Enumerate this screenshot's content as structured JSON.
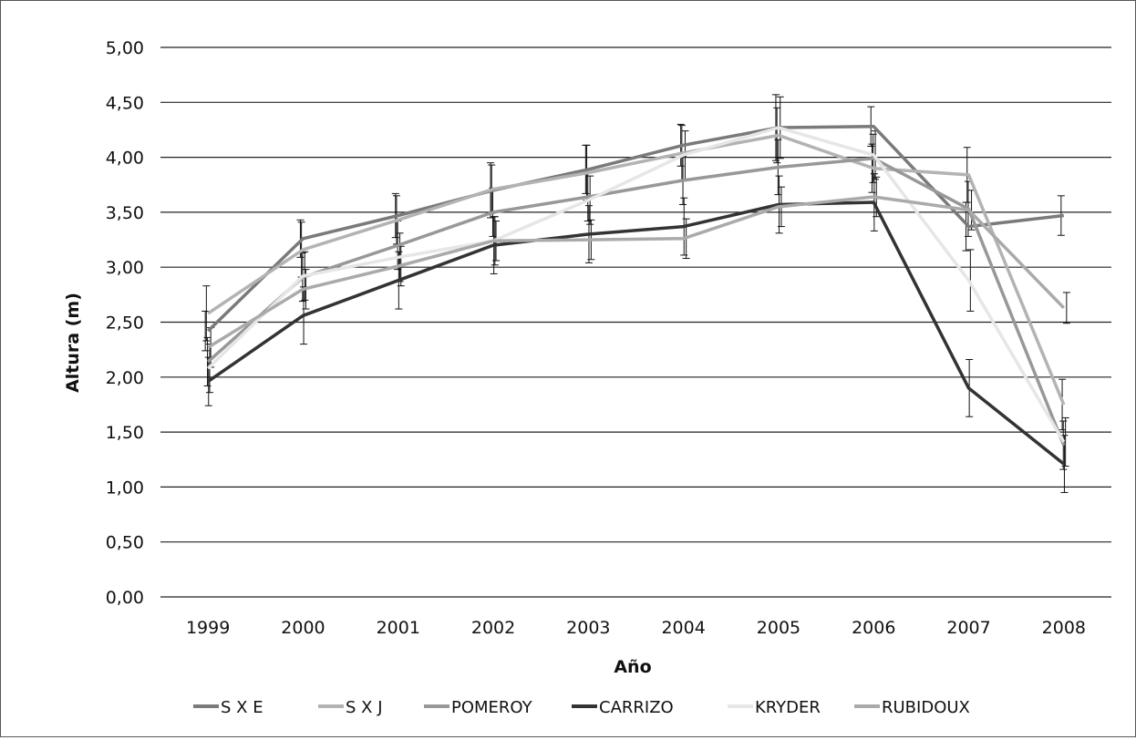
{
  "chart_data": {
    "type": "line",
    "title": "",
    "xlabel": "Año",
    "ylabel": "Altura (m)",
    "ylim": [
      0,
      5
    ],
    "y_ticks": [
      "0,00",
      "0,50",
      "1,00",
      "1,50",
      "2,00",
      "2,50",
      "3,00",
      "3,50",
      "4,00",
      "4,50",
      "5,00"
    ],
    "categories": [
      "1999",
      "2000",
      "2001",
      "2002",
      "2003",
      "2004",
      "2005",
      "2006",
      "2007",
      "2008"
    ],
    "grid": "horizontal",
    "legend_position": "bottom",
    "error_bars": true,
    "series": [
      {
        "name": "S X E",
        "color": "#7a7a7a",
        "values": [
          2.42,
          3.26,
          3.47,
          3.7,
          3.89,
          4.11,
          4.27,
          4.28,
          3.37,
          3.47
        ],
        "errors": [
          0.18,
          0.17,
          0.2,
          0.25,
          0.22,
          0.19,
          0.3,
          0.18,
          0.22,
          0.18
        ]
      },
      {
        "name": "S X J",
        "color": "#b3b3b3",
        "values": [
          2.58,
          3.16,
          3.43,
          3.71,
          3.86,
          4.04,
          4.2,
          3.9,
          3.84,
          1.75
        ],
        "errors": [
          0.25,
          0.25,
          0.22,
          0.22,
          0.25,
          0.25,
          0.25,
          0.22,
          0.25,
          0.23
        ]
      },
      {
        "name": "POMEROY",
        "color": "#989898",
        "values": [
          2.14,
          2.91,
          3.2,
          3.5,
          3.64,
          3.79,
          3.91,
          3.99,
          3.53,
          1.38
        ],
        "errors": [
          0.22,
          0.22,
          0.22,
          0.22,
          0.22,
          0.22,
          0.25,
          0.22,
          0.25,
          0.22
        ]
      },
      {
        "name": "CARRIZO",
        "color": "#333333",
        "values": [
          1.96,
          2.56,
          2.88,
          3.2,
          3.3,
          3.37,
          3.57,
          3.59,
          1.9,
          1.21
        ],
        "errors": [
          0.22,
          0.26,
          0.26,
          0.26,
          0.26,
          0.26,
          0.26,
          0.26,
          0.26,
          0.26
        ]
      },
      {
        "name": "KRYDER",
        "color": "#e6e6e6",
        "values": [
          2.08,
          2.92,
          3.09,
          3.24,
          3.61,
          4.02,
          4.27,
          4.02,
          2.88,
          1.41
        ],
        "errors": [
          0.22,
          0.22,
          0.22,
          0.22,
          0.22,
          0.22,
          0.28,
          0.22,
          0.28,
          0.22
        ]
      },
      {
        "name": "RUBIDOUX",
        "color": "#aaaaaa",
        "values": [
          2.27,
          2.8,
          3.01,
          3.24,
          3.25,
          3.26,
          3.55,
          3.64,
          3.52,
          2.63
        ],
        "errors": [
          0.18,
          0.18,
          0.18,
          0.18,
          0.18,
          0.18,
          0.18,
          0.18,
          0.18,
          0.14
        ]
      }
    ]
  }
}
